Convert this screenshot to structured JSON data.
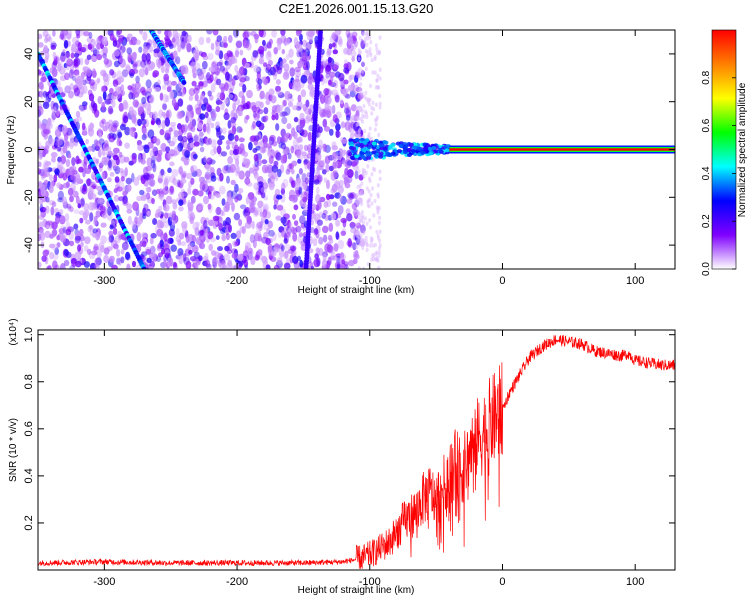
{
  "chart_data": [
    {
      "type": "heatmap",
      "title": "C2E1.2026.001.15.13.G20",
      "xlabel": "Height of straight line (km)",
      "ylabel": "Frequency (Hz)",
      "xlim": [
        -350,
        130
      ],
      "ylim": [
        -50,
        50
      ],
      "x_ticks": [
        -300,
        -200,
        -100,
        0,
        100
      ],
      "x_tick_labels": [
        "-300",
        "-200",
        "-100",
        "0",
        "100"
      ],
      "y_ticks": [
        -40,
        -20,
        0,
        20,
        40
      ],
      "y_tick_labels": [
        "-40",
        "-20",
        "0",
        "20",
        "40"
      ],
      "colorbar": {
        "label": "Normalized spectral amplitude",
        "range": [
          0,
          1
        ],
        "ticks": [
          0.0,
          0.2,
          0.4,
          0.6,
          0.8
        ],
        "tick_labels": [
          "0.0",
          "0.2",
          "0.4",
          "0.6",
          "0.8"
        ],
        "stops": [
          "#ffffff",
          "#7f00ff",
          "#0000ff",
          "#00ffff",
          "#00ff00",
          "#ffff00",
          "#ff8000",
          "#ff0000"
        ]
      },
      "features": [
        {
          "name": "descending-track",
          "x": [
            -350,
            -270
          ],
          "freq": [
            40,
            -50
          ]
        },
        {
          "name": "upper-track",
          "x": [
            -265,
            -240
          ],
          "freq": [
            50,
            28
          ]
        },
        {
          "name": "steep-track",
          "x": [
            -148,
            -137
          ],
          "freq": [
            -50,
            50
          ]
        },
        {
          "name": "carrier-line",
          "x": [
            -115,
            130
          ],
          "freq": [
            0,
            0
          ]
        }
      ]
    },
    {
      "type": "line",
      "title": "",
      "xlabel": "Height of straight line (km)",
      "ylabel": "SNR (10 * v/v)",
      "y_scale_note": "(x10⁴)",
      "xlim": [
        -350,
        130
      ],
      "ylim": [
        0,
        1.02
      ],
      "x_ticks": [
        -300,
        -200,
        -100,
        0,
        100
      ],
      "x_tick_labels": [
        "-300",
        "-200",
        "-100",
        "0",
        "100"
      ],
      "y_ticks": [
        0.2,
        0.4,
        0.6,
        0.8,
        1.0
      ],
      "y_tick_labels": [
        "0.2",
        "0.4",
        "0.6",
        "0.8",
        "1.0"
      ],
      "color": "#ff0000",
      "series": [
        {
          "name": "SNR",
          "x": [
            -350,
            -300,
            -250,
            -200,
            -150,
            -120,
            -105,
            -95,
            -85,
            -75,
            -65,
            -60,
            -55,
            -50,
            -45,
            -40,
            -35,
            -30,
            -25,
            -20,
            -15,
            -10,
            -5,
            0,
            5,
            10,
            15,
            20,
            30,
            40,
            50,
            60,
            70,
            80,
            90,
            95,
            100,
            110,
            120,
            130
          ],
          "y": [
            0.03,
            0.035,
            0.03,
            0.03,
            0.03,
            0.035,
            0.05,
            0.08,
            0.12,
            0.2,
            0.25,
            0.3,
            0.33,
            0.3,
            0.35,
            0.42,
            0.45,
            0.42,
            0.5,
            0.55,
            0.58,
            0.62,
            0.65,
            0.68,
            0.75,
            0.8,
            0.85,
            0.9,
            0.95,
            0.98,
            0.97,
            0.96,
            0.93,
            0.92,
            0.91,
            0.92,
            0.89,
            0.88,
            0.87,
            0.87
          ]
        }
      ]
    }
  ]
}
